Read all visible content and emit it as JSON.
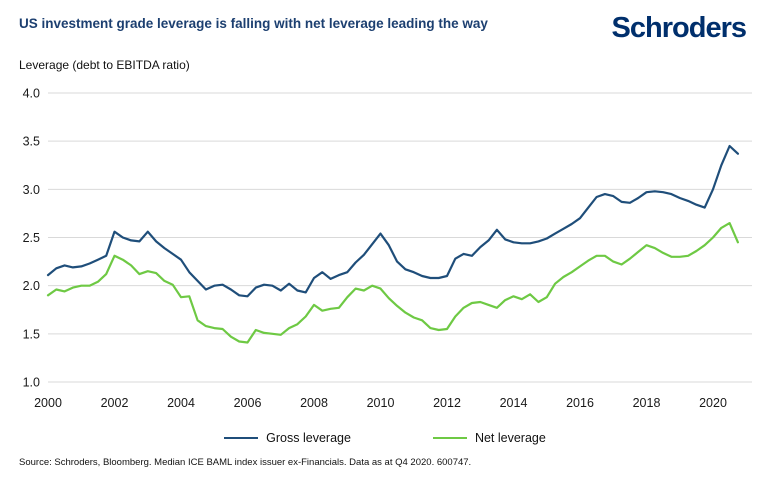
{
  "header": {
    "logo": "Schroders"
  },
  "chart_data": {
    "type": "line",
    "title": "US investment grade leverage is falling with net leverage leading the way",
    "ylabel": "Leverage (debt to EBITDA ratio)",
    "x_start_year": 2000,
    "x_step_years": 0.25,
    "x_end": "2020 Q4",
    "x_tick_labels": [
      "2000",
      "2002",
      "2004",
      "2006",
      "2008",
      "2010",
      "2012",
      "2014",
      "2016",
      "2018",
      "2020"
    ],
    "y_ticks": [
      4.0,
      3.5,
      3.0,
      2.5,
      2.0,
      1.5,
      1.0
    ],
    "ylim": [
      1.0,
      4.0
    ],
    "grid": "horizontal-only",
    "legend_position": "bottom-center",
    "series": [
      {
        "name": "Gross leverage",
        "color": "#1f4e7a",
        "values": [
          2.11,
          2.18,
          2.21,
          2.19,
          2.2,
          2.23,
          2.27,
          2.31,
          2.56,
          2.5,
          2.47,
          2.46,
          2.56,
          2.46,
          2.39,
          2.33,
          2.27,
          2.14,
          2.05,
          1.96,
          2.0,
          2.01,
          1.96,
          1.9,
          1.89,
          1.98,
          2.01,
          2.0,
          1.95,
          2.02,
          1.95,
          1.93,
          2.08,
          2.14,
          2.07,
          2.11,
          2.14,
          2.24,
          2.32,
          2.43,
          2.54,
          2.42,
          2.25,
          2.17,
          2.14,
          2.1,
          2.08,
          2.08,
          2.1,
          2.28,
          2.33,
          2.31,
          2.4,
          2.47,
          2.58,
          2.48,
          2.45,
          2.44,
          2.44,
          2.46,
          2.49,
          2.54,
          2.59,
          2.64,
          2.7,
          2.81,
          2.92,
          2.95,
          2.93,
          2.87,
          2.86,
          2.91,
          2.97,
          2.98,
          2.97,
          2.95,
          2.91,
          2.88,
          2.84,
          2.81,
          3.0,
          3.25,
          3.45,
          3.37
        ]
      },
      {
        "name": "Net leverage",
        "color": "#6ec944",
        "values": [
          1.9,
          1.96,
          1.94,
          1.98,
          2.0,
          2.0,
          2.04,
          2.12,
          2.31,
          2.27,
          2.21,
          2.12,
          2.15,
          2.13,
          2.05,
          2.01,
          1.88,
          1.89,
          1.64,
          1.58,
          1.56,
          1.55,
          1.47,
          1.42,
          1.41,
          1.54,
          1.51,
          1.5,
          1.49,
          1.56,
          1.6,
          1.68,
          1.8,
          1.74,
          1.76,
          1.77,
          1.88,
          1.97,
          1.95,
          2.0,
          1.97,
          1.87,
          1.79,
          1.72,
          1.67,
          1.64,
          1.56,
          1.54,
          1.55,
          1.68,
          1.77,
          1.82,
          1.83,
          1.8,
          1.77,
          1.85,
          1.89,
          1.86,
          1.91,
          1.83,
          1.88,
          2.02,
          2.09,
          2.14,
          2.2,
          2.26,
          2.31,
          2.31,
          2.25,
          2.22,
          2.28,
          2.35,
          2.42,
          2.39,
          2.34,
          2.3,
          2.3,
          2.31,
          2.36,
          2.42,
          2.5,
          2.6,
          2.65,
          2.45
        ]
      }
    ]
  },
  "footer": {
    "source": "Source: Schroders, Bloomberg. Median ICE BAML index issuer ex-Financials. Data as at Q4 2020. 600747."
  },
  "colors": {
    "title": "#1c3f70",
    "logo": "#002f6c",
    "gross_line": "#1f4e7a",
    "net_line": "#6ec944",
    "gridline": "#d9d9d9",
    "axis_text": "#1a1a1a"
  }
}
